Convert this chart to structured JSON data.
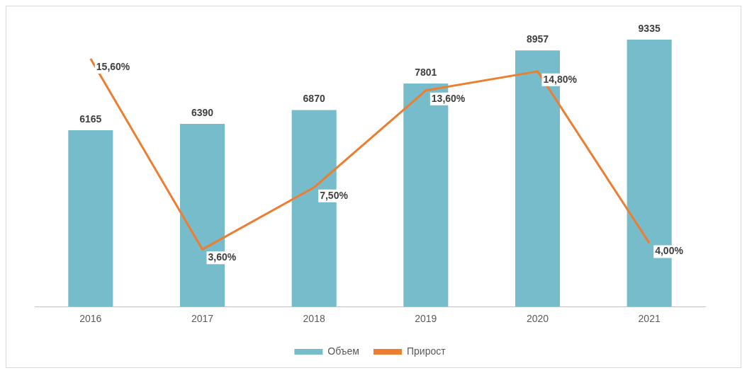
{
  "chart_data": {
    "type": "bar",
    "categories": [
      "2016",
      "2017",
      "2018",
      "2019",
      "2020",
      "2021"
    ],
    "series": [
      {
        "name": "Объем",
        "color": "#77bccb",
        "values": [
          6165,
          6390,
          6870,
          7801,
          8957,
          9335
        ],
        "value_labels": [
          "6165",
          "6390",
          "6870",
          "7801",
          "8957",
          "9335"
        ]
      },
      {
        "name": "Прирост",
        "type": "line",
        "axis": "y2",
        "color": "#ed7d31",
        "values": [
          15.6,
          3.6,
          7.5,
          13.6,
          14.8,
          4.0
        ],
        "value_labels": [
          "15,60%",
          "3,60%",
          "7,50%",
          "13,60%",
          "14,80%",
          "4,00%"
        ]
      }
    ],
    "tick_labels": "x",
    "grid": false,
    "legend": "bottom",
    "marker": "none"
  }
}
